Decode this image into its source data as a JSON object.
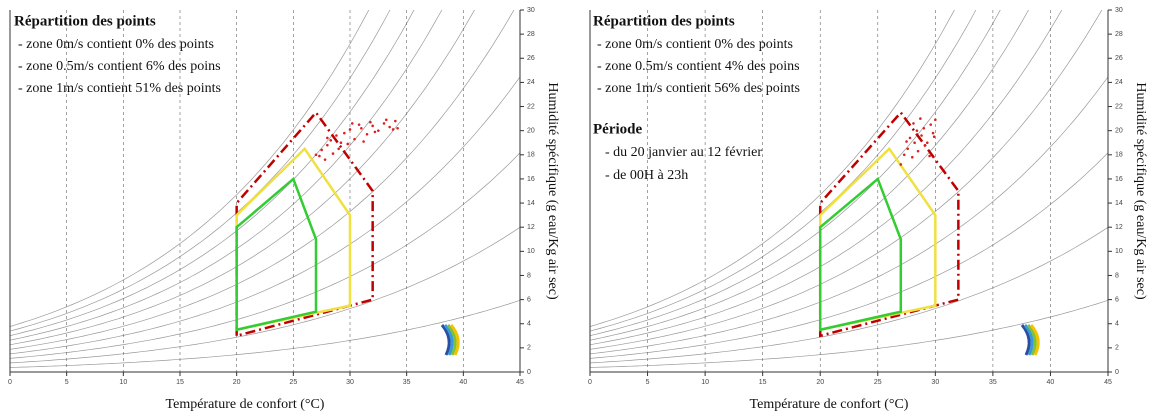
{
  "chart_data": [
    {
      "type": "scatter",
      "title": "Répartition des points",
      "annotations": [
        "- zone 0m/s contient 0% des points",
        "- zone 0.5m/s contient 6% des poins",
        "- zone 1m/s contient 51% des points"
      ],
      "xlabel": "Température de confort (°C)",
      "y2label": "Humidité spécifique (g eau/Kg air sec)",
      "xlim": [
        0,
        45
      ],
      "xticks": [
        0,
        5,
        10,
        15,
        20,
        25,
        30,
        35,
        40,
        45
      ],
      "y2lim": [
        0,
        30
      ],
      "y2ticks": [
        0,
        2,
        4,
        6,
        8,
        10,
        12,
        14,
        16,
        18,
        20,
        22,
        24,
        26,
        28,
        30
      ],
      "grid": true,
      "zones": [
        {
          "color": "#c00000",
          "dashed": true,
          "x": [
            20,
            20,
            27,
            32,
            32
          ],
          "values": [
            3,
            14,
            21.5,
            15,
            6
          ]
        },
        {
          "color": "#f0e040",
          "dashed": false,
          "x": [
            20,
            20,
            26,
            30,
            30
          ],
          "values": [
            3.5,
            13,
            18.5,
            13,
            5.5
          ]
        },
        {
          "color": "#33cc33",
          "dashed": false,
          "x": [
            20,
            20,
            25,
            27,
            27
          ],
          "values": [
            3.5,
            12,
            16,
            11,
            5
          ]
        }
      ],
      "series": [
        {
          "color": "#e02020",
          "axis": "y2",
          "x": [
            27,
            27.5,
            28,
            28.3,
            28.8,
            29,
            29.5,
            30,
            30.4,
            31,
            31.5,
            32,
            32.5,
            33,
            33.5,
            34,
            34.2,
            27.8,
            28.5,
            29.2,
            30.2,
            31.2,
            32.2,
            33.2,
            27.3,
            28,
            29.8,
            30.8,
            31.8,
            33.8
          ],
          "values": [
            18,
            18.4,
            18.8,
            19.2,
            19.6,
            18.5,
            19.8,
            20.1,
            19.3,
            20.2,
            19.7,
            20.4,
            20,
            20.6,
            20.3,
            20.8,
            20.2,
            17.6,
            18.1,
            19,
            20.6,
            19.1,
            19.9,
            20.9,
            17.9,
            19.4,
            18.9,
            20.5,
            20.7,
            20.1
          ]
        }
      ]
    },
    {
      "type": "scatter",
      "title": "Répartition des points",
      "annotations": [
        "- zone 0m/s contient 0% des points",
        "- zone 0.5m/s contient 4% des poins",
        "- zone 1m/s contient 56% des points"
      ],
      "period_title": "Période",
      "period_lines": [
        "- du 20 janvier au 12 février",
        "- de 00H à 23h"
      ],
      "xlabel": "Température de confort (°C)",
      "y2label": "Humidité spécifique (g eau/Kg air sec)",
      "xlim": [
        0,
        45
      ],
      "xticks": [
        0,
        5,
        10,
        15,
        20,
        25,
        30,
        35,
        40,
        45
      ],
      "y2lim": [
        0,
        30
      ],
      "y2ticks": [
        0,
        2,
        4,
        6,
        8,
        10,
        12,
        14,
        16,
        18,
        20,
        22,
        24,
        26,
        28,
        30
      ],
      "grid": true,
      "zones": [
        {
          "color": "#c00000",
          "dashed": true,
          "x": [
            20,
            20,
            27,
            32,
            32
          ],
          "values": [
            3,
            14,
            21.5,
            15,
            6
          ]
        },
        {
          "color": "#f0e040",
          "dashed": false,
          "x": [
            20,
            20,
            26,
            30,
            30
          ],
          "values": [
            3.5,
            13,
            18.5,
            13,
            5.5
          ]
        },
        {
          "color": "#33cc33",
          "dashed": false,
          "x": [
            20,
            20,
            25,
            27,
            27
          ],
          "values": [
            3.5,
            12,
            16,
            11,
            5
          ]
        }
      ],
      "series": [
        {
          "color": "#e02020",
          "axis": "y2",
          "x": [
            27,
            27.3,
            27.6,
            28,
            28.2,
            28.5,
            28.8,
            29,
            29.3,
            29.6,
            29.8,
            30,
            27.8,
            28.4,
            29.1,
            28.7,
            29.5,
            27.5,
            28.1,
            29.9
          ],
          "values": [
            17.2,
            18,
            18.5,
            17.8,
            19,
            18.3,
            19.6,
            20.2,
            19,
            20.5,
            19.8,
            20.9,
            19.4,
            20,
            18.8,
            21,
            17.9,
            19.1,
            20.6,
            19.5
          ]
        }
      ]
    }
  ]
}
